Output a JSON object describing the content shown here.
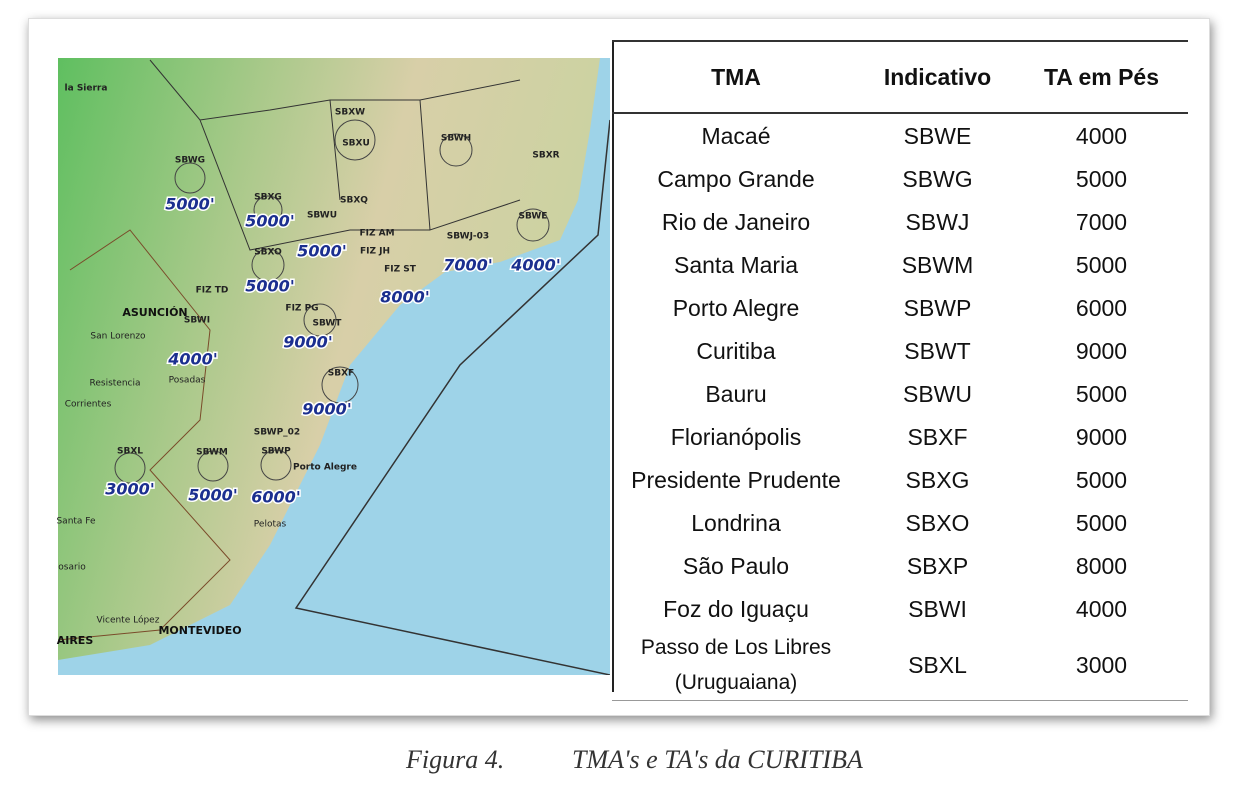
{
  "map": {
    "labels": [
      "la Sierra",
      "SBXW",
      "SBXU",
      "SBWH",
      "SBXR",
      "SBWG",
      "5000'",
      "SBXG",
      "5000'",
      "SBWU",
      "SBXQ",
      "SBXO",
      "5000'",
      "FIZ AM",
      "FIZ JH",
      "FIZ ST",
      "SBWJ-03",
      "7000'",
      "SBWE",
      "4000'",
      "5000'",
      "8000'",
      "FIZ TD",
      "ASUNCIÓN",
      "SBWI",
      "FIZ PG",
      "SBWT",
      "9000'",
      "San Lorenzo",
      "4000'",
      "Resistencia",
      "Posadas",
      "Corrientes",
      "SBXF",
      "9000'",
      "SBWP_02",
      "SBXL",
      "SBWM",
      "SBWP",
      "Porto Alegre",
      "3000'",
      "5000'",
      "6000'",
      "Pelotas",
      "Santa Fe",
      "osario",
      "Vicente López",
      "MONTEVIDEO",
      "AIRES"
    ]
  },
  "table": {
    "header": [
      "TMA",
      "Indicativo",
      "TA em Pés"
    ],
    "rows": [
      [
        "Macaé",
        "SBWE",
        4000
      ],
      [
        "Campo Grande",
        "SBWG",
        5000
      ],
      [
        "Rio de Janeiro",
        "SBWJ",
        7000
      ],
      [
        "Santa Maria",
        "SBWM",
        5000
      ],
      [
        "Porto Alegre",
        "SBWP",
        6000
      ],
      [
        "Curitiba",
        "SBWT",
        9000
      ],
      [
        "Bauru",
        "SBWU",
        5000
      ],
      [
        "Florianópolis",
        "SBXF",
        9000
      ],
      [
        "Presidente Prudente",
        "SBXG",
        5000
      ],
      [
        "Londrina",
        "SBXO",
        5000
      ],
      [
        "São Paulo",
        "SBXP",
        8000
      ],
      [
        "Foz do Iguaçu",
        "SBWI",
        4000
      ],
      [
        "Passo de Los Libres (Uruguaiana)",
        "SBXL",
        3000
      ]
    ]
  },
  "caption": {
    "number": "Figura 4.",
    "text": "TMA's e TA's da CURITIBA"
  }
}
